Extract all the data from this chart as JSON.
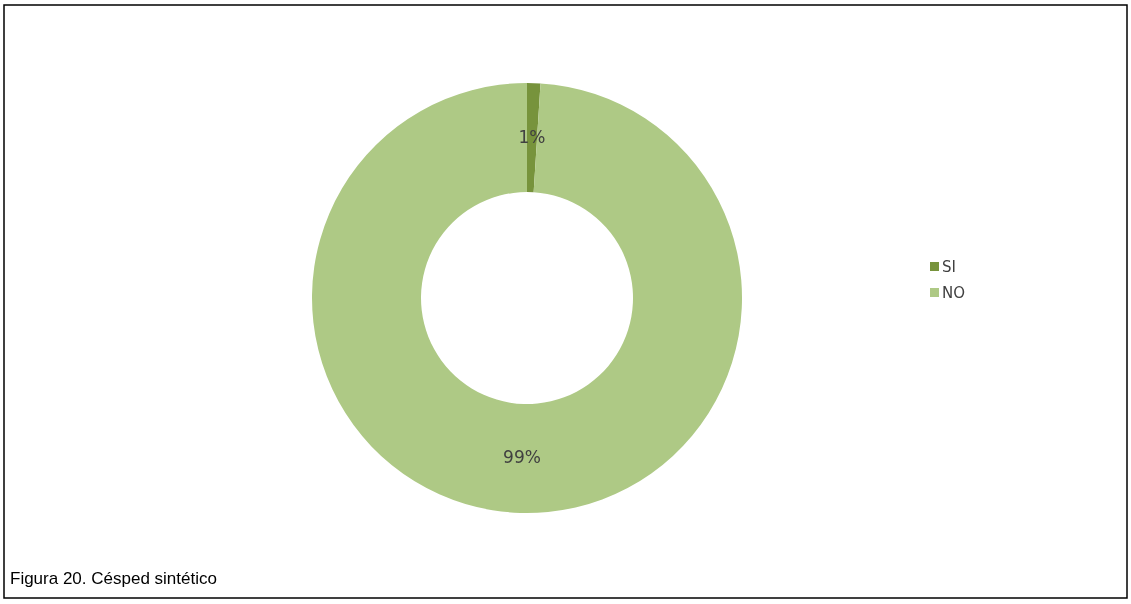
{
  "chart_data": {
    "type": "donut",
    "categories": [
      "SI",
      "NO"
    ],
    "values": [
      1,
      99
    ],
    "colors": [
      "#77933c",
      "#aec985"
    ],
    "value_labels": [
      "1%",
      "99%"
    ],
    "legend": "right",
    "annotations": [
      "Figura 20. Césped sintético"
    ]
  }
}
